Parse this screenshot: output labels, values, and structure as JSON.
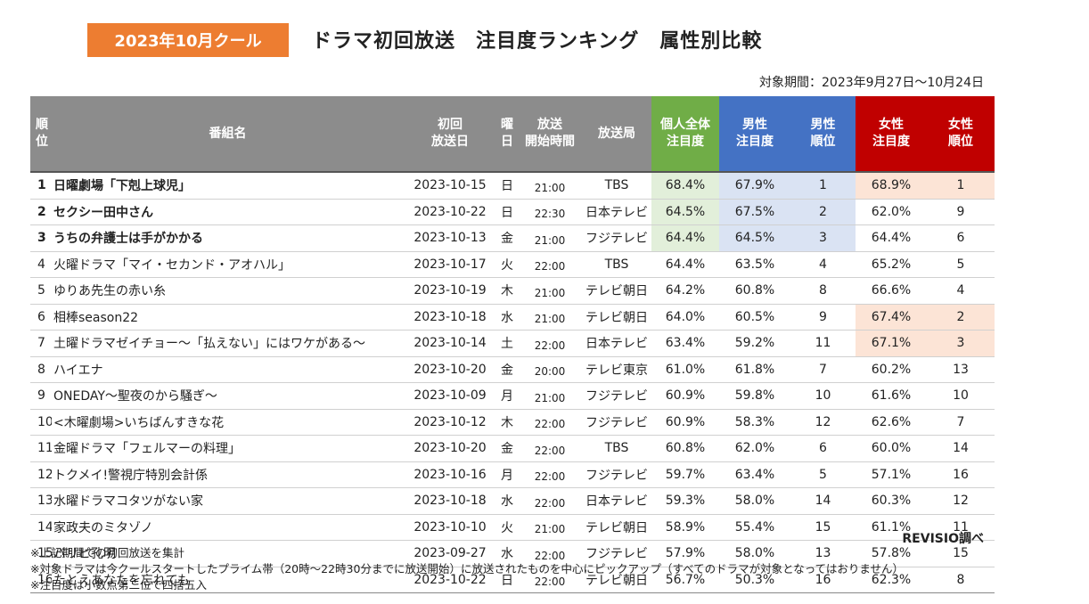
{
  "header": {
    "badge": "2023年10月クール",
    "title": "ドラマ初回放送　注目度ランキング　属性別比較",
    "period": "対象期間：2023年9月27日～10月24日"
  },
  "columns": {
    "rank": "順\n位",
    "name": "番組名",
    "date": "初回\n放送日",
    "day": "曜\n日",
    "time": "放送\n開始時間",
    "station": "放送局",
    "personal": "個人全体\n注目度",
    "male": "男性\n注目度",
    "male_rank": "男性\n順位",
    "female": "女性\n注目度",
    "female_rank": "女性\n順位"
  },
  "rows": [
    {
      "rank": "1",
      "name": "日曜劇場「下剋上球児」",
      "date": "2023-10-15",
      "day": "日",
      "time": "21:00",
      "station": "TBS",
      "personal": "68.4%",
      "male": "67.9%",
      "male_rank": "1",
      "female": "68.9%",
      "female_rank": "1"
    },
    {
      "rank": "2",
      "name": "セクシー田中さん",
      "date": "2023-10-22",
      "day": "日",
      "time": "22:30",
      "station": "日本テレビ",
      "personal": "64.5%",
      "male": "67.5%",
      "male_rank": "2",
      "female": "62.0%",
      "female_rank": "9"
    },
    {
      "rank": "3",
      "name": "うちの弁護士は手がかかる",
      "date": "2023-10-13",
      "day": "金",
      "time": "21:00",
      "station": "フジテレビ",
      "personal": "64.4%",
      "male": "64.5%",
      "male_rank": "3",
      "female": "64.4%",
      "female_rank": "6"
    },
    {
      "rank": "4",
      "name": "火曜ドラマ「マイ・セカンド・アオハル」",
      "date": "2023-10-17",
      "day": "火",
      "time": "22:00",
      "station": "TBS",
      "personal": "64.4%",
      "male": "63.5%",
      "male_rank": "4",
      "female": "65.2%",
      "female_rank": "5"
    },
    {
      "rank": "5",
      "name": "ゆりあ先生の赤い糸",
      "date": "2023-10-19",
      "day": "木",
      "time": "21:00",
      "station": "テレビ朝日",
      "personal": "64.2%",
      "male": "60.8%",
      "male_rank": "8",
      "female": "66.6%",
      "female_rank": "4"
    },
    {
      "rank": "6",
      "name": "相棒season22",
      "date": "2023-10-18",
      "day": "水",
      "time": "21:00",
      "station": "テレビ朝日",
      "personal": "64.0%",
      "male": "60.5%",
      "male_rank": "9",
      "female": "67.4%",
      "female_rank": "2"
    },
    {
      "rank": "7",
      "name": "土曜ドラマゼイチョー～「払えない」にはワケがある～",
      "date": "2023-10-14",
      "day": "土",
      "time": "22:00",
      "station": "日本テレビ",
      "personal": "63.4%",
      "male": "59.2%",
      "male_rank": "11",
      "female": "67.1%",
      "female_rank": "3"
    },
    {
      "rank": "8",
      "name": "ハイエナ",
      "date": "2023-10-20",
      "day": "金",
      "time": "20:00",
      "station": "テレビ東京",
      "personal": "61.0%",
      "male": "61.8%",
      "male_rank": "7",
      "female": "60.2%",
      "female_rank": "13"
    },
    {
      "rank": "9",
      "name": "ONEDAY～聖夜のから騒ぎ～",
      "date": "2023-10-09",
      "day": "月",
      "time": "21:00",
      "station": "フジテレビ",
      "personal": "60.9%",
      "male": "59.8%",
      "male_rank": "10",
      "female": "61.6%",
      "female_rank": "10"
    },
    {
      "rank": "10",
      "name": "<木曜劇場>いちばんすきな花",
      "date": "2023-10-12",
      "day": "木",
      "time": "22:00",
      "station": "フジテレビ",
      "personal": "60.9%",
      "male": "58.3%",
      "male_rank": "12",
      "female": "62.6%",
      "female_rank": "7"
    },
    {
      "rank": "11",
      "name": "金曜ドラマ「フェルマーの料理」",
      "date": "2023-10-20",
      "day": "金",
      "time": "22:00",
      "station": "TBS",
      "personal": "60.8%",
      "male": "62.0%",
      "male_rank": "6",
      "female": "60.0%",
      "female_rank": "14"
    },
    {
      "rank": "12",
      "name": "トクメイ!警視庁特別会計係",
      "date": "2023-10-16",
      "day": "月",
      "time": "22:00",
      "station": "フジテレビ",
      "personal": "59.7%",
      "male": "63.4%",
      "male_rank": "5",
      "female": "57.1%",
      "female_rank": "16"
    },
    {
      "rank": "13",
      "name": "水曜ドラマコタツがない家",
      "date": "2023-10-18",
      "day": "水",
      "time": "22:00",
      "station": "日本テレビ",
      "personal": "59.3%",
      "male": "58.0%",
      "male_rank": "14",
      "female": "60.3%",
      "female_rank": "12"
    },
    {
      "rank": "14",
      "name": "家政夫のミタゾノ",
      "date": "2023-10-10",
      "day": "火",
      "time": "21:00",
      "station": "テレビ朝日",
      "personal": "58.9%",
      "male": "55.4%",
      "male_rank": "15",
      "female": "61.1%",
      "female_rank": "11"
    },
    {
      "rank": "15",
      "name": "パリピ孔明",
      "date": "2023-09-27",
      "day": "水",
      "time": "22:00",
      "station": "フジテレビ",
      "personal": "57.9%",
      "male": "58.0%",
      "male_rank": "13",
      "female": "57.8%",
      "female_rank": "15"
    },
    {
      "rank": "16",
      "name": "たとえあなたを忘れても",
      "date": "2023-10-22",
      "day": "日",
      "time": "22:00",
      "station": "テレビ朝日",
      "personal": "56.7%",
      "male": "50.3%",
      "male_rank": "16",
      "female": "62.3%",
      "female_rank": "8"
    }
  ],
  "source": "REVISIO調べ",
  "notes": [
    "※上記期間での初回放送を集計",
    "※対象ドラマは今クールスタートしたプライム帯（20時～22時30分までに放送開始）に放送されたものを中心にピックアップ（すべてのドラマが対象となってはおりません）",
    "※注目度は小数点第二位で四捨五入"
  ]
}
